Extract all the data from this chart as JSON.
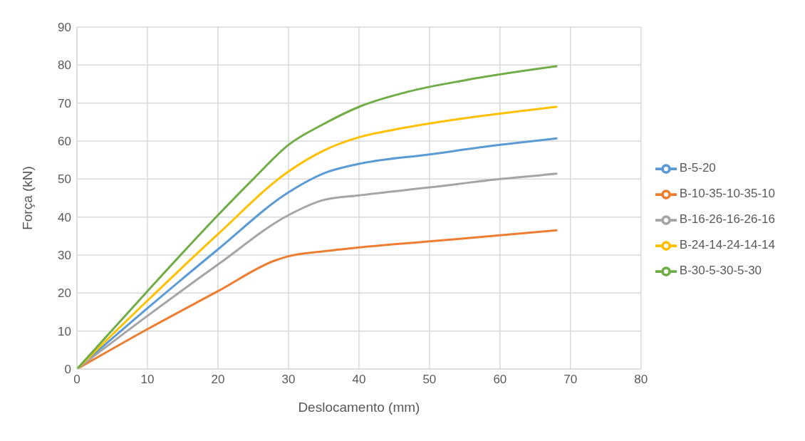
{
  "chart_data": {
    "type": "line",
    "xlabel": "Deslocamento (mm)",
    "ylabel": "Força (kN)",
    "xlim": [
      0,
      80
    ],
    "xticks": [
      0,
      10,
      20,
      30,
      40,
      50,
      60,
      70,
      80
    ],
    "ylim": [
      0,
      90
    ],
    "yticks": [
      0,
      10,
      20,
      30,
      40,
      50,
      60,
      70,
      80,
      90
    ],
    "grid": true,
    "legend": "right",
    "marker": "none",
    "line_style": "solid",
    "series": [
      {
        "name": "B-5-20",
        "color": "#5b9bd5",
        "x": [
          0,
          10,
          20,
          30,
          35,
          40,
          50,
          60,
          68
        ],
        "values": [
          0,
          16,
          31.5,
          46.5,
          51.5,
          54,
          56.5,
          59,
          60.7
        ]
      },
      {
        "name": "B-10-35-10-35-10",
        "color": "#ed7d31",
        "x": [
          0,
          10,
          20,
          28,
          30,
          35,
          40,
          50,
          60,
          68
        ],
        "values": [
          0,
          10.5,
          20.5,
          28.5,
          29.7,
          31,
          32,
          33.6,
          35.2,
          36.5
        ]
      },
      {
        "name": "B-16-26-16-26-16",
        "color": "#a5a5a5",
        "x": [
          0,
          10,
          20,
          30,
          35,
          40,
          50,
          60,
          68
        ],
        "values": [
          0,
          14,
          27.5,
          40.5,
          44.5,
          45.7,
          47.8,
          50,
          51.4
        ]
      },
      {
        "name": "B-24-14-24-14-14",
        "color": "#ffc000",
        "x": [
          0,
          10,
          20,
          30,
          35,
          40,
          45,
          55,
          68
        ],
        "values": [
          0,
          18,
          35.5,
          52,
          57.5,
          61,
          63,
          66,
          69
        ]
      },
      {
        "name": "B-30-5-30-5-30",
        "color": "#70ad47",
        "x": [
          0,
          10,
          20,
          25,
          30,
          35,
          40,
          47,
          55,
          68
        ],
        "values": [
          0,
          20.5,
          40.5,
          50,
          59,
          64.5,
          69,
          73,
          76,
          79.7
        ]
      }
    ]
  }
}
